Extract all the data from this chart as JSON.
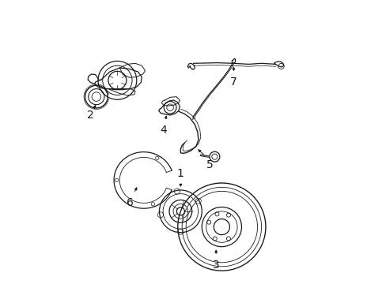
{
  "bg_color": "#ffffff",
  "line_color": "#1a1a1a",
  "lw": 0.9,
  "figsize": [
    4.89,
    3.6
  ],
  "dpi": 100,
  "labels": {
    "1": [
      0.455,
      0.355,
      0.455,
      0.395
    ],
    "2": [
      0.135,
      0.595,
      0.155,
      0.635
    ],
    "3": [
      0.56,
      0.08,
      0.56,
      0.115
    ],
    "4": [
      0.405,
      0.545,
      0.405,
      0.578
    ],
    "5": [
      0.565,
      0.38,
      0.565,
      0.415
    ],
    "6": [
      0.28,
      0.3,
      0.29,
      0.34
    ],
    "7": [
      0.645,
      0.525,
      0.645,
      0.558
    ]
  }
}
